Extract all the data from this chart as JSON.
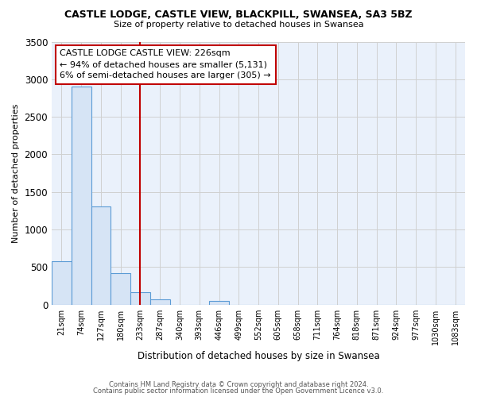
{
  "title": "CASTLE LODGE, CASTLE VIEW, BLACKPILL, SWANSEA, SA3 5BZ",
  "subtitle": "Size of property relative to detached houses in Swansea",
  "xlabel": "Distribution of detached houses by size in Swansea",
  "ylabel": "Number of detached properties",
  "footnote1": "Contains HM Land Registry data © Crown copyright and database right 2024.",
  "footnote2": "Contains public sector information licensed under the Open Government Licence v3.0.",
  "bar_labels": [
    "21sqm",
    "74sqm",
    "127sqm",
    "180sqm",
    "233sqm",
    "287sqm",
    "340sqm",
    "393sqm",
    "446sqm",
    "499sqm",
    "552sqm",
    "605sqm",
    "658sqm",
    "711sqm",
    "764sqm",
    "818sqm",
    "871sqm",
    "924sqm",
    "977sqm",
    "1030sqm",
    "1083sqm"
  ],
  "bar_values": [
    580,
    2900,
    1310,
    420,
    160,
    65,
    0,
    0,
    50,
    0,
    0,
    0,
    0,
    0,
    0,
    0,
    0,
    0,
    0,
    0,
    0
  ],
  "bar_fill_color": "#d6e4f5",
  "bar_edge_color": "#5b9bd5",
  "highlight_line_index": 4,
  "highlight_line_color": "#c00000",
  "ylim": [
    0,
    3500
  ],
  "yticks": [
    0,
    500,
    1000,
    1500,
    2000,
    2500,
    3000,
    3500
  ],
  "annotation_title": "CASTLE LODGE CASTLE VIEW: 226sqm",
  "annotation_line1": "← 94% of detached houses are smaller (5,131)",
  "annotation_line2": "6% of semi-detached houses are larger (305) →",
  "annotation_box_color": "#c00000",
  "grid_color": "#d0d0d0",
  "bg_color": "#eaf1fb"
}
